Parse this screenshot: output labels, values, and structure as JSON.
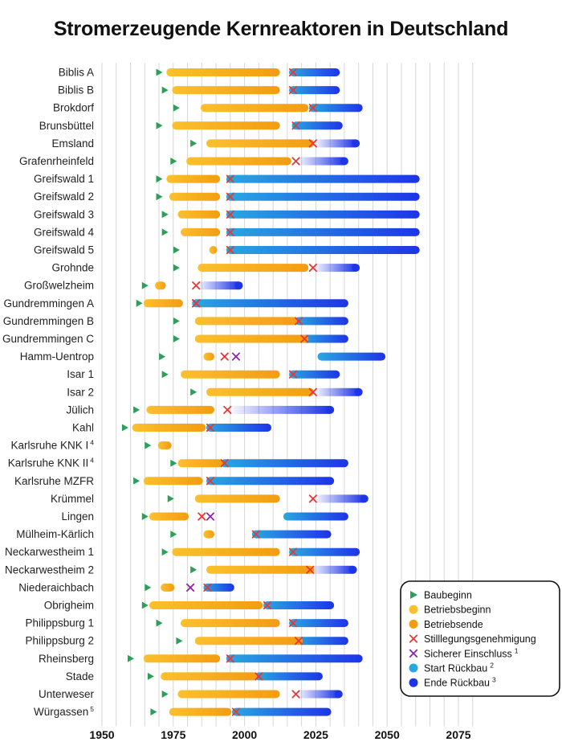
{
  "title": "Stromerzeugende Kernreaktoren in Deutschland",
  "colors": {
    "bau": "#2e9e5b",
    "betrieb_start": "#fbc02d",
    "betrieb_end": "#f39c12",
    "stilllegung": "#e53935",
    "einschluss": "#8e24aa",
    "rueckbau_start": "#29a8e0",
    "rueckbau_end": "#1e34e8",
    "grid": "#d6d6d6"
  },
  "chart_data": {
    "type": "gantt",
    "title": "Stromerzeugende Kernreaktoren in Deutschland",
    "xlim": [
      1950,
      2080
    ],
    "xticks": [
      1950,
      1975,
      2000,
      2025,
      2050,
      2075
    ],
    "reactors": [
      {
        "name": "Biblis A",
        "bau": 1970,
        "betrieb": [
          1974,
          2011
        ],
        "stillgenehmigung": 2017,
        "einschluss": null,
        "rueckbau": [
          2017,
          2032
        ]
      },
      {
        "name": "Biblis B",
        "bau": 1972,
        "betrieb": [
          1976,
          2011
        ],
        "stillgenehmigung": 2017,
        "einschluss": null,
        "rueckbau": [
          2017,
          2032
        ]
      },
      {
        "name": "Brokdorf",
        "bau": 1976,
        "betrieb": [
          1986,
          2021
        ],
        "stillgenehmigung": 2024,
        "einschluss": null,
        "rueckbau": [
          2024,
          2040
        ]
      },
      {
        "name": "Brunsbüttel",
        "bau": 1970,
        "betrieb": [
          1976,
          2011
        ],
        "stillgenehmigung": 2018,
        "einschluss": null,
        "rueckbau": [
          2018,
          2033
        ]
      },
      {
        "name": "Emsland",
        "bau": 1982,
        "betrieb": [
          1988,
          2023
        ],
        "stillgenehmigung": 2024,
        "einschluss": null,
        "rueckbau_fading": [
          2024,
          2039
        ]
      },
      {
        "name": "Grafenrheinfeld",
        "bau": 1975,
        "betrieb": [
          1981,
          2015
        ],
        "stillgenehmigung": 2018,
        "einschluss": null,
        "rueckbau_fading": [
          2018,
          2035
        ]
      },
      {
        "name": "Greifswald 1",
        "bau": 1970,
        "betrieb": [
          1974,
          1990
        ],
        "stillgenehmigung": 1995,
        "einschluss": null,
        "rueckbau": [
          1995,
          2060
        ]
      },
      {
        "name": "Greifswald 2",
        "bau": 1970,
        "betrieb": [
          1975,
          1990
        ],
        "stillgenehmigung": 1995,
        "einschluss": null,
        "rueckbau": [
          1995,
          2060
        ]
      },
      {
        "name": "Greifswald 3",
        "bau": 1972,
        "betrieb": [
          1978,
          1990
        ],
        "stillgenehmigung": 1995,
        "einschluss": null,
        "rueckbau": [
          1995,
          2060
        ]
      },
      {
        "name": "Greifswald 4",
        "bau": 1972,
        "betrieb": [
          1979,
          1990
        ],
        "stillgenehmigung": 1995,
        "einschluss": null,
        "rueckbau": [
          1995,
          2060
        ]
      },
      {
        "name": "Greifswald 5",
        "bau": 1976,
        "betrieb": [
          1989,
          1989
        ],
        "stillgenehmigung": 1995,
        "einschluss": null,
        "rueckbau": [
          1995,
          2060
        ]
      },
      {
        "name": "Grohnde",
        "bau": 1976,
        "betrieb": [
          1985,
          2021
        ],
        "stillgenehmigung": 2024,
        "einschluss": null,
        "rueckbau_fading": [
          2024,
          2039
        ]
      },
      {
        "name": "Großwelzheim",
        "bau": 1965,
        "betrieb": [
          1970,
          1971
        ],
        "stillgenehmigung": 1983,
        "einschluss": null,
        "rueckbau_fading": [
          1983,
          1998
        ]
      },
      {
        "name": "Gundremmingen A",
        "bau": 1963,
        "betrieb": [
          1966,
          1977
        ],
        "stillgenehmigung": 1983,
        "einschluss": 1983,
        "rueckbau": [
          1983,
          2035
        ]
      },
      {
        "name": "Gundremmingen B",
        "bau": 1976,
        "betrieb": [
          1984,
          2017
        ],
        "stillgenehmigung": 2019,
        "einschluss": null,
        "rueckbau": [
          2019,
          2035
        ]
      },
      {
        "name": "Gundremmingen C",
        "bau": 1976,
        "betrieb": [
          1984,
          2021
        ],
        "stillgenehmigung": 2021,
        "einschluss": null,
        "rueckbau": [
          2021,
          2035
        ]
      },
      {
        "name": "Hamm-Uentrop",
        "bau": 1971,
        "betrieb": [
          1987,
          1988
        ],
        "stillgenehmigung": 1993,
        "einschluss": 1997,
        "rueckbau": [
          2027,
          2048
        ]
      },
      {
        "name": "Isar 1",
        "bau": 1972,
        "betrieb": [
          1979,
          2011
        ],
        "stillgenehmigung": 2017,
        "einschluss": null,
        "rueckbau": [
          2017,
          2032
        ]
      },
      {
        "name": "Isar 2",
        "bau": 1982,
        "betrieb": [
          1988,
          2023
        ],
        "stillgenehmigung": 2024,
        "einschluss": null,
        "rueckbau_fading": [
          2024,
          2040
        ]
      },
      {
        "name": "Jülich",
        "bau": 1962,
        "betrieb": [
          1967,
          1988
        ],
        "stillgenehmigung": 1994,
        "einschluss": null,
        "rueckbau_fading": [
          1994,
          2030
        ]
      },
      {
        "name": "Kahl",
        "bau": 1958,
        "betrieb": [
          1962,
          1985
        ],
        "stillgenehmigung": 1988,
        "einschluss": null,
        "rueckbau": [
          1988,
          2008
        ]
      },
      {
        "name": "Karlsruhe KNK I",
        "sup": "4",
        "bau": 1966,
        "betrieb": [
          1971,
          1973
        ],
        "stillgenehmigung": null,
        "einschluss": null,
        "rueckbau": null
      },
      {
        "name": "Karlsruhe KNK II",
        "sup": "4",
        "bau": 1975,
        "betrieb": [
          1978,
          1991
        ],
        "stillgenehmigung": 1993,
        "einschluss": null,
        "rueckbau": [
          1993,
          2035
        ]
      },
      {
        "name": "Karlsruhe MZFR",
        "bau": 1962,
        "betrieb": [
          1966,
          1984
        ],
        "stillgenehmigung": 1988,
        "einschluss": null,
        "rueckbau": [
          1988,
          2030
        ]
      },
      {
        "name": "Krümmel",
        "bau": 1974,
        "betrieb": [
          1984,
          2011
        ],
        "stillgenehmigung": 2024,
        "einschluss": null,
        "rueckbau_fading": [
          2024,
          2042
        ]
      },
      {
        "name": "Lingen",
        "bau": 1965,
        "betrieb": [
          1968,
          1979
        ],
        "stillgenehmigung": 1985,
        "einschluss": 1988,
        "rueckbau": [
          2015,
          2035
        ]
      },
      {
        "name": "Mülheim-Kärlich",
        "bau": 1975,
        "betrieb": [
          1987,
          1988
        ],
        "stillgenehmigung": 2004,
        "einschluss": null,
        "rueckbau": [
          2004,
          2029
        ]
      },
      {
        "name": "Neckarwestheim 1",
        "bau": 1972,
        "betrieb": [
          1976,
          2011
        ],
        "stillgenehmigung": 2017,
        "einschluss": null,
        "rueckbau": [
          2017,
          2039
        ]
      },
      {
        "name": "Neckarwestheim 2",
        "bau": 1982,
        "betrieb": [
          1988,
          2023
        ],
        "stillgenehmigung": 2023,
        "einschluss": null,
        "rueckbau_fading": [
          2023,
          2038
        ]
      },
      {
        "name": "Niederaichbach",
        "bau": 1966,
        "betrieb": [
          1972,
          1974
        ],
        "stillgenehmigung": 1987,
        "einschluss": 1981,
        "rueckbau": [
          1987,
          1995
        ]
      },
      {
        "name": "Obrigheim",
        "bau": 1965,
        "betrieb": [
          1968,
          2005
        ],
        "stillgenehmigung": 2008,
        "einschluss": null,
        "rueckbau": [
          2008,
          2030
        ]
      },
      {
        "name": "Philippsburg 1",
        "bau": 1970,
        "betrieb": [
          1979,
          2011
        ],
        "stillgenehmigung": 2017,
        "einschluss": null,
        "rueckbau": [
          2017,
          2035
        ]
      },
      {
        "name": "Philippsburg 2",
        "bau": 1977,
        "betrieb": [
          1984,
          2019
        ],
        "stillgenehmigung": 2019,
        "einschluss": null,
        "rueckbau": [
          2019,
          2035
        ]
      },
      {
        "name": "Rheinsberg",
        "bau": 1960,
        "betrieb": [
          1966,
          1990
        ],
        "stillgenehmigung": 1995,
        "einschluss": null,
        "rueckbau": [
          1995,
          2040
        ]
      },
      {
        "name": "Stade",
        "bau": 1967,
        "betrieb": [
          1972,
          2003
        ],
        "stillgenehmigung": 2005,
        "einschluss": null,
        "rueckbau": [
          2005,
          2026
        ]
      },
      {
        "name": "Unterweser",
        "bau": 1972,
        "betrieb": [
          1978,
          2011
        ],
        "stillgenehmigung": 2018,
        "einschluss": null,
        "rueckbau_fading": [
          2018,
          2033
        ]
      },
      {
        "name": "Würgassen",
        "sup": "5",
        "bau": 1968,
        "betrieb": [
          1975,
          1994
        ],
        "stillgenehmigung": 1997,
        "einschluss": null,
        "rueckbau": [
          1997,
          2029
        ]
      }
    ],
    "legend": [
      {
        "key": "bau",
        "label": "Baubeginn",
        "sup": ""
      },
      {
        "key": "betrieb_start",
        "label": "Betriebsbeginn",
        "sup": ""
      },
      {
        "key": "betrieb_end",
        "label": "Betriebsende",
        "sup": ""
      },
      {
        "key": "stilllegung",
        "label": "Stilllegungsgenehmigung",
        "sup": ""
      },
      {
        "key": "einschluss",
        "label": "Sicherer Einschluss",
        "sup": "1"
      },
      {
        "key": "rueckbau_start",
        "label": "Start Rückbau",
        "sup": "2"
      },
      {
        "key": "rueckbau_end",
        "label": "Ende Rückbau",
        "sup": "3"
      }
    ]
  }
}
